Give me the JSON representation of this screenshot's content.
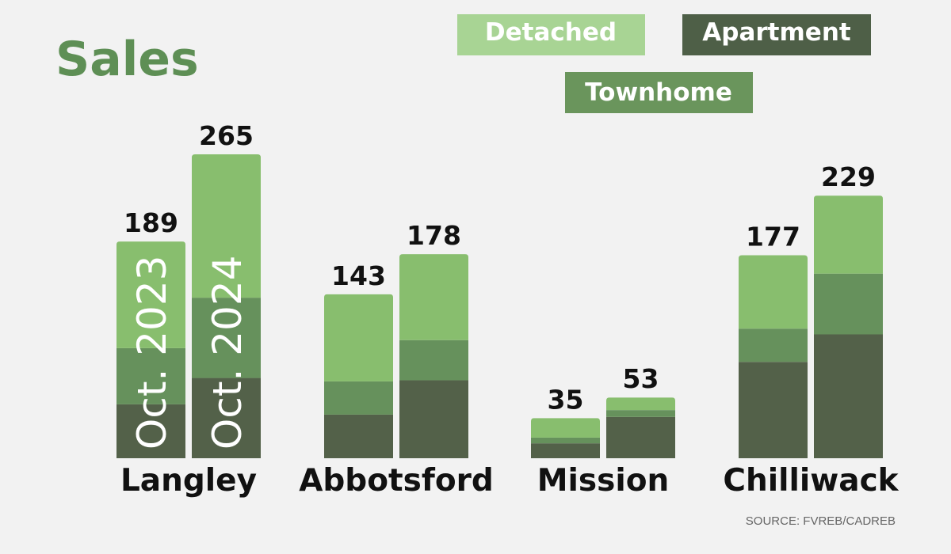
{
  "chart_data": {
    "type": "bar",
    "stacked": true,
    "title": "Sales",
    "categories": [
      "Langley",
      "Abbotsford",
      "Mission",
      "Chilliwack"
    ],
    "periods": [
      "Oct. 2023",
      "Oct. 2024"
    ],
    "series": [
      {
        "name": "Apartment",
        "color": "#536149",
        "values": [
          [
            47,
            70
          ],
          [
            38,
            68
          ],
          [
            13,
            36
          ],
          [
            84,
            108
          ]
        ]
      },
      {
        "name": "Townhome",
        "color": "#66915c",
        "values": [
          [
            49,
            70
          ],
          [
            29,
            35
          ],
          [
            5,
            6
          ],
          [
            29,
            53
          ]
        ]
      },
      {
        "name": "Detached",
        "color": "#88be6e",
        "values": [
          [
            93,
            125
          ],
          [
            76,
            75
          ],
          [
            17,
            11
          ],
          [
            64,
            68
          ]
        ]
      }
    ],
    "totals": [
      [
        189,
        265
      ],
      [
        143,
        178
      ],
      [
        35,
        53
      ],
      [
        177,
        229
      ]
    ],
    "legend": [
      {
        "label": "Detached",
        "bg": "#a8d494"
      },
      {
        "label": "Apartment",
        "bg": "#4e5f47"
      },
      {
        "label": "Townhome",
        "bg": "#6a955c"
      }
    ],
    "colors": {
      "title": "#5e8f55"
    },
    "source": "SOURCE: FVREB/CADREB"
  }
}
